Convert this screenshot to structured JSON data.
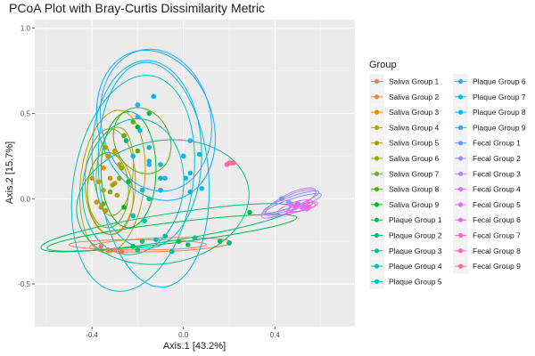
{
  "chart_data": {
    "type": "scatter",
    "title": "PCoA Plot with Bray-Curtis Dissimilarity Metric",
    "xlabel": "Axis.1   [43.2%]",
    "ylabel": "Axis.2   [15.7%]",
    "xlim": [
      -0.65,
      0.75
    ],
    "ylim": [
      -0.75,
      1.05
    ],
    "xticks": [
      -0.4,
      0.0,
      0.4
    ],
    "xtick_labels": [
      "-0.4",
      "0.0",
      "0.4"
    ],
    "yticks": [
      -0.5,
      0.0,
      0.5,
      1.0
    ],
    "ytick_labels": [
      "-0.5",
      "0.0",
      "0.5",
      "1.0"
    ],
    "grid": true,
    "legend_title": "Group",
    "legend_position": "right",
    "series": [
      {
        "name": "Saliva Group 1",
        "color": "#F8766D",
        "points": [
          [
            -0.36,
            -0.28
          ],
          [
            -0.3,
            -0.3
          ]
        ],
        "ellipse": {
          "cx": -0.2,
          "cy": -0.27,
          "rx": 0.3,
          "ry": 0.03,
          "rot": 0
        }
      },
      {
        "name": "Saliva Group 2",
        "color": "#EB8335",
        "points": [
          [
            -0.33,
            -0.3
          ],
          [
            -0.27,
            -0.31
          ]
        ],
        "ellipse": {
          "cx": -0.1,
          "cy": -0.27,
          "rx": 0.31,
          "ry": 0.04,
          "rot": -2
        }
      },
      {
        "name": "Saliva Group 3",
        "color": "#DA8F00",
        "points": [
          [
            -0.35,
            0.18
          ],
          [
            -0.3,
            0.09
          ],
          [
            -0.38,
            -0.02
          ],
          [
            -0.32,
            0.12
          ],
          [
            -0.34,
            -0.07
          ]
        ],
        "ellipse": {
          "cx": -0.32,
          "cy": 0.03,
          "rx": 0.1,
          "ry": 0.24,
          "rot": -3
        }
      },
      {
        "name": "Saliva Group 4",
        "color": "#C49A00",
        "points": [
          [
            -0.3,
            0.28
          ],
          [
            -0.35,
            0.05
          ],
          [
            -0.28,
            0.2
          ],
          [
            -0.4,
            0.12
          ]
        ],
        "ellipse": {
          "cx": -0.31,
          "cy": 0.1,
          "rx": 0.14,
          "ry": 0.42,
          "rot": 6
        }
      },
      {
        "name": "Saliva Group 5",
        "color": "#AFA200",
        "points": [
          [
            -0.37,
            0.1
          ],
          [
            -0.29,
            0.02
          ],
          [
            -0.33,
            0.25
          ],
          [
            -0.36,
            -0.05
          ]
        ],
        "ellipse": {
          "cx": -0.32,
          "cy": 0.1,
          "rx": 0.11,
          "ry": 0.31,
          "rot": 0
        }
      },
      {
        "name": "Saliva Group 6",
        "color": "#96A900",
        "points": [
          [
            -0.34,
            0.3
          ],
          [
            -0.27,
            0.18
          ],
          [
            -0.31,
            0.08
          ]
        ],
        "ellipse": {
          "cx": -0.3,
          "cy": 0.16,
          "rx": 0.08,
          "ry": 0.26,
          "rot": 5
        }
      },
      {
        "name": "Saliva Group 7",
        "color": "#7AAE00",
        "points": [
          [
            -0.35,
            -0.03
          ],
          [
            -0.28,
            0.12
          ],
          [
            -0.32,
            0.04
          ]
        ],
        "ellipse": {
          "cx": -0.33,
          "cy": 0.05,
          "rx": 0.09,
          "ry": 0.22,
          "rot": 0
        }
      },
      {
        "name": "Saliva Group 8",
        "color": "#53B400",
        "points": [
          [
            -0.26,
            0.37
          ],
          [
            -0.2,
            0.28
          ],
          [
            -0.22,
            0.45
          ]
        ],
        "ellipse": {
          "cx": -0.18,
          "cy": 0.34,
          "rx": 0.12,
          "ry": 0.2,
          "rot": -25
        }
      },
      {
        "name": "Saliva Group 9",
        "color": "#00B81F",
        "points": [
          [
            -0.2,
            0.42
          ],
          [
            -0.24,
            0.1
          ],
          [
            -0.26,
            -0.05
          ]
        ],
        "ellipse": {
          "cx": -0.24,
          "cy": 0.17,
          "rx": 0.12,
          "ry": 0.34,
          "rot": 0
        }
      },
      {
        "name": "Plaque Group 1",
        "color": "#00BB4E",
        "points": [
          [
            -0.22,
            -0.28
          ],
          [
            -0.02,
            -0.25
          ],
          [
            0.16,
            -0.25
          ],
          [
            0.29,
            -0.08
          ],
          [
            -0.15,
            0.5
          ]
        ],
        "ellipse": {
          "cx": -0.05,
          "cy": -0.2,
          "rx": 0.55,
          "ry": 0.06,
          "rot": -7
        }
      },
      {
        "name": "Plaque Group 2",
        "color": "#00BD72",
        "points": [
          [
            -0.2,
            -0.3
          ],
          [
            0.02,
            -0.27
          ],
          [
            0.2,
            -0.26
          ],
          [
            -0.25,
            0.34
          ]
        ],
        "ellipse": {
          "cx": -0.07,
          "cy": -0.17,
          "rx": 0.56,
          "ry": 0.08,
          "rot": -9
        }
      },
      {
        "name": "Plaque Group 3",
        "color": "#00BF91",
        "points": [
          [
            -0.18,
            -0.25
          ],
          [
            -0.08,
            -0.22
          ],
          [
            0.05,
            -0.23
          ],
          [
            -0.15,
            0.0
          ]
        ],
        "ellipse": {
          "cx": -0.09,
          "cy": -0.02,
          "rx": 0.38,
          "ry": 0.36,
          "rot": -10
        }
      },
      {
        "name": "Plaque Group 4",
        "color": "#00C0AD",
        "points": [
          [
            -0.12,
            -0.24
          ],
          [
            -0.17,
            -0.13
          ],
          [
            -0.05,
            -0.31
          ],
          [
            -0.15,
            0.22
          ]
        ],
        "ellipse": {
          "cx": -0.22,
          "cy": 0.07,
          "rx": 0.22,
          "ry": 0.4,
          "rot": 8
        }
      },
      {
        "name": "Plaque Group 5",
        "color": "#00C0C5",
        "points": [
          [
            -0.18,
            0.05
          ],
          [
            -0.1,
            0.12
          ],
          [
            -0.22,
            -0.1
          ],
          [
            -0.15,
            0.3
          ]
        ],
        "ellipse": {
          "cx": -0.22,
          "cy": 0.09,
          "rx": 0.26,
          "ry": 0.64,
          "rot": 10
        }
      },
      {
        "name": "Plaque Group 6",
        "color": "#00BEDB",
        "points": [
          [
            -0.19,
            0.4
          ],
          [
            -0.1,
            0.2
          ],
          [
            0.03,
            0.15
          ],
          [
            0.07,
            0.26
          ]
        ],
        "ellipse": {
          "cx": -0.16,
          "cy": 0.26,
          "rx": 0.24,
          "ry": 0.55,
          "rot": 0
        }
      },
      {
        "name": "Plaque Group 7",
        "color": "#00B9EF",
        "points": [
          [
            -0.2,
            0.48
          ],
          [
            0.01,
            0.12
          ],
          [
            0.08,
            0.06
          ],
          [
            -0.22,
            0.25
          ]
        ],
        "ellipse": {
          "cx": -0.13,
          "cy": 0.14,
          "rx": 0.24,
          "ry": 0.66,
          "rot": -5
        }
      },
      {
        "name": "Plaque Group 8",
        "color": "#00B3FF",
        "points": [
          [
            -0.13,
            0.6
          ],
          [
            0.0,
            0.25
          ],
          [
            0.03,
            0.04
          ],
          [
            -0.1,
            0.05
          ]
        ],
        "ellipse": {
          "cx": -0.12,
          "cy": 0.43,
          "rx": 0.25,
          "ry": 0.45,
          "rot": -18
        }
      },
      {
        "name": "Plaque Group 9",
        "color": "#2EA9FF",
        "points": [
          [
            -0.2,
            0.55
          ],
          [
            -0.15,
            0.2
          ],
          [
            0.03,
            0.34
          ],
          [
            -0.08,
            0.12
          ]
        ],
        "ellipse": {
          "cx": -0.12,
          "cy": 0.46,
          "rx": 0.24,
          "ry": 0.42,
          "rot": -12
        }
      },
      {
        "name": "Fecal Group 1",
        "color": "#619CFF",
        "points": [
          [
            0.43,
            0.0
          ],
          [
            0.5,
            -0.03
          ]
        ],
        "ellipse": {
          "cx": 0.47,
          "cy": -0.02,
          "rx": 0.13,
          "ry": 0.03,
          "rot": -20
        }
      },
      {
        "name": "Fecal Group 2",
        "color": "#8F91FF",
        "points": [
          [
            0.46,
            -0.02
          ],
          [
            0.52,
            -0.05
          ]
        ],
        "ellipse": {
          "cx": 0.48,
          "cy": -0.03,
          "rx": 0.13,
          "ry": 0.03,
          "rot": -18
        }
      },
      {
        "name": "Fecal Group 3",
        "color": "#B385FF",
        "points": [
          [
            0.47,
            -0.04
          ],
          [
            0.54,
            -0.06
          ]
        ],
        "ellipse": {
          "cx": 0.47,
          "cy": -0.02,
          "rx": 0.12,
          "ry": 0.05,
          "rot": -26
        }
      },
      {
        "name": "Fecal Group 4",
        "color": "#CF78FF",
        "points": [
          [
            0.47,
            -0.03
          ],
          [
            0.52,
            -0.05
          ]
        ],
        "ellipse": {
          "cx": 0.46,
          "cy": -0.03,
          "rx": 0.13,
          "ry": 0.045,
          "rot": -25
        }
      },
      {
        "name": "Fecal Group 5",
        "color": "#E46DF6",
        "points": [
          [
            0.49,
            -0.04
          ],
          [
            0.53,
            -0.05
          ]
        ],
        "ellipse": {
          "cx": 0.49,
          "cy": -0.05,
          "rx": 0.08,
          "ry": 0.03,
          "rot": -18
        }
      },
      {
        "name": "Fecal Group 6",
        "color": "#F365E6",
        "points": [
          [
            0.5,
            -0.04
          ],
          [
            0.55,
            -0.05
          ]
        ],
        "ellipse": {
          "cx": 0.52,
          "cy": -0.05,
          "rx": 0.07,
          "ry": 0.02,
          "rot": -15
        }
      },
      {
        "name": "Fecal Group 7",
        "color": "#FC61D3",
        "points": [
          [
            0.49,
            -0.05
          ],
          [
            0.54,
            -0.05
          ]
        ],
        "ellipse": {
          "cx": 0.52,
          "cy": -0.05,
          "rx": 0.06,
          "ry": 0.02,
          "rot": -12
        }
      },
      {
        "name": "Fecal Group 8",
        "color": "#FF63BC",
        "points": [
          [
            0.19,
            0.2
          ],
          [
            0.21,
            0.21
          ]
        ],
        "ellipse": null
      },
      {
        "name": "Fecal Group 9",
        "color": "#FF6C90",
        "points": [
          [
            0.2,
            0.21
          ],
          [
            0.22,
            0.21
          ]
        ],
        "ellipse": null
      }
    ]
  }
}
